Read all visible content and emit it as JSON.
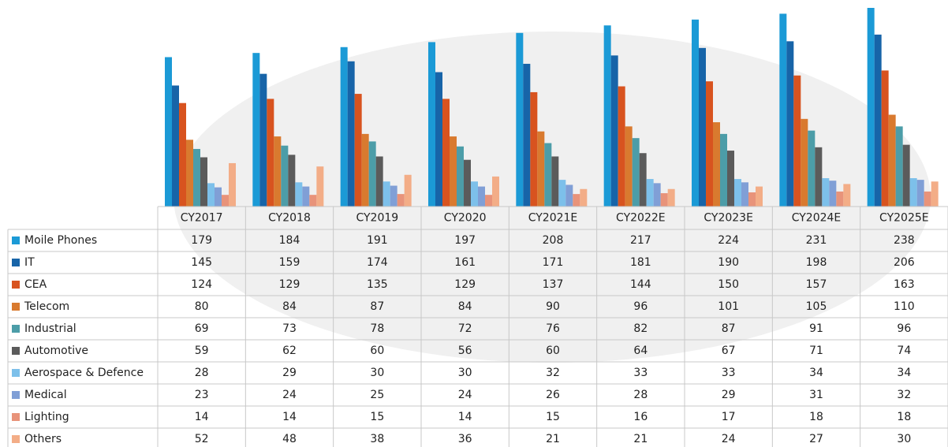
{
  "chart_data": {
    "type": "bar",
    "categories": [
      "CY2017",
      "CY2018",
      "CY2019",
      "CY2020",
      "CY2021E",
      "CY2022E",
      "CY2023E",
      "CY2024E",
      "CY2025E"
    ],
    "series": [
      {
        "name": "Moile Phones",
        "color": "#1b9ad6",
        "values": [
          179,
          184,
          191,
          197,
          208,
          217,
          224,
          231,
          238
        ]
      },
      {
        "name": "IT",
        "color": "#1764a8",
        "values": [
          145,
          159,
          174,
          161,
          171,
          181,
          190,
          198,
          206
        ]
      },
      {
        "name": "CEA",
        "color": "#d8531f",
        "values": [
          124,
          129,
          135,
          129,
          137,
          144,
          150,
          157,
          163
        ]
      },
      {
        "name": "Telecom",
        "color": "#d97a2f",
        "values": [
          80,
          84,
          87,
          84,
          90,
          96,
          101,
          105,
          110
        ]
      },
      {
        "name": "Industrial",
        "color": "#4c9da8",
        "values": [
          69,
          73,
          78,
          72,
          76,
          82,
          87,
          91,
          96
        ]
      },
      {
        "name": "Automotive",
        "color": "#5b5b5b",
        "values": [
          59,
          62,
          60,
          56,
          60,
          64,
          67,
          71,
          74
        ]
      },
      {
        "name": "Aerospace & Defence",
        "color": "#7dc0ea",
        "values": [
          28,
          29,
          30,
          30,
          32,
          33,
          33,
          34,
          34
        ]
      },
      {
        "name": "Medical",
        "color": "#809fd6",
        "values": [
          23,
          24,
          25,
          24,
          26,
          28,
          29,
          31,
          32
        ]
      },
      {
        "name": "Lighting",
        "color": "#e8937a",
        "values": [
          14,
          14,
          15,
          14,
          15,
          16,
          17,
          18,
          18
        ]
      },
      {
        "name": "Others",
        "color": "#f3ad87",
        "values": [
          52,
          48,
          38,
          36,
          21,
          21,
          24,
          27,
          30
        ]
      }
    ]
  }
}
